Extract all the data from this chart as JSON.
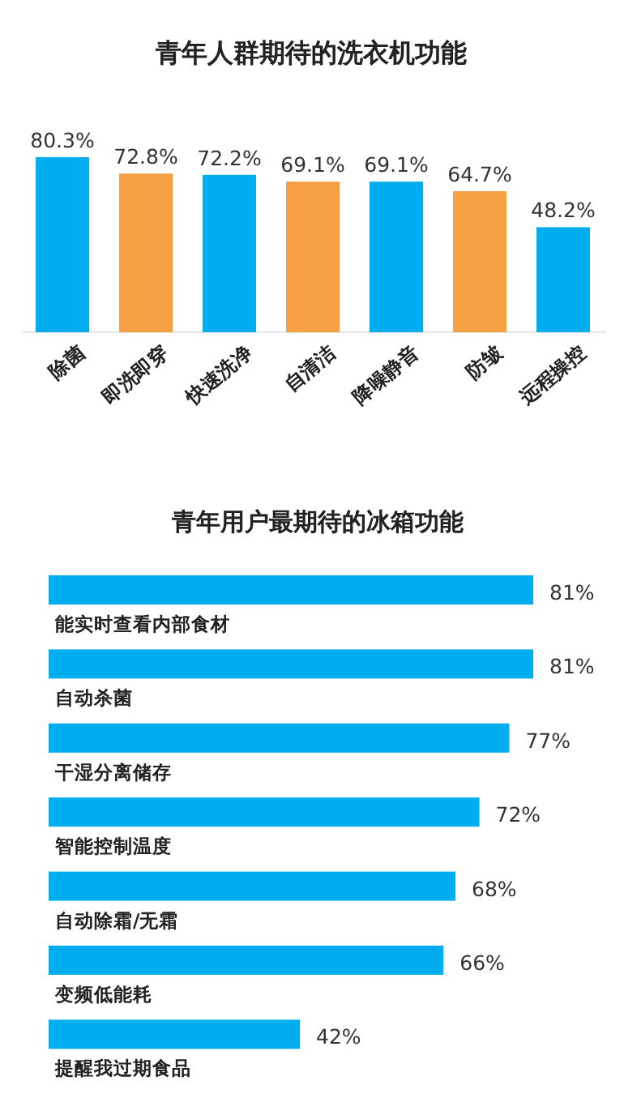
{
  "chart_data": [
    {
      "type": "bar",
      "title": "青年人群期待的洗衣机功能",
      "categories": [
        "除菌",
        "即洗即穿",
        "快速洗净",
        "自清洁",
        "降噪静音",
        "防皱",
        "远程操控"
      ],
      "values": [
        80.3,
        72.8,
        72.2,
        69.1,
        69.1,
        64.7,
        48.2
      ],
      "colors": [
        "#00aeef",
        "#f7a043",
        "#00aeef",
        "#f7a043",
        "#00aeef",
        "#f7a043",
        "#00aeef"
      ],
      "value_labels": [
        "80.3%",
        "72.8%",
        "72.2%",
        "69.1%",
        "69.1%",
        "64.7%",
        "48.2%"
      ]
    },
    {
      "type": "bar",
      "orientation": "horizontal",
      "title": "青年用户最期待的冰箱功能",
      "categories": [
        "能实时查看内部食材",
        "自动杀菌",
        "干湿分离储存",
        "智能控制温度",
        "自动除霜/无霜",
        "变频低能耗",
        "提醒我过期食品"
      ],
      "values": [
        81,
        81,
        77,
        72,
        68,
        66,
        42
      ],
      "value_labels": [
        "81%",
        "81%",
        "77%",
        "72%",
        "68%",
        "66%",
        "42%"
      ],
      "color": "#00aeef"
    }
  ]
}
